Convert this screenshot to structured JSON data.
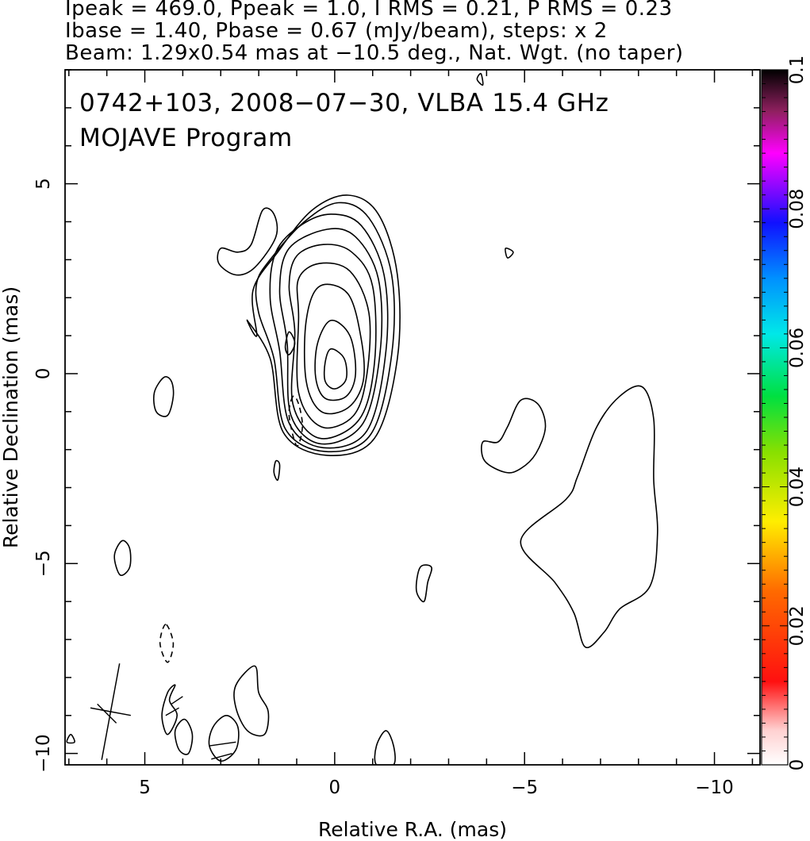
{
  "header": {
    "line1": "Ipeak = 469.0, Ppeak = 1.0, I RMS = 0.21, P RMS = 0.23",
    "line2": "Ibase = 1.40, Pbase = 0.67 (mJy/beam), steps: x 2",
    "line3": "Beam: 1.29x0.54 mas at −10.5 deg., Nat. Wgt. (no taper)"
  },
  "plot_title": {
    "line1": "0742+103, 2008−07−30, VLBA 15.4 GHz",
    "line2": "MOJAVE Program"
  },
  "colorbar": {
    "ticks": [
      "0",
      "0.02",
      "0.04",
      "0.06",
      "0.08",
      "0.1"
    ],
    "tick_values": [
      0,
      0.02,
      0.04,
      0.06,
      0.08,
      0.1
    ],
    "range": [
      0,
      0.1
    ],
    "colormap": "rainbow (white–red–orange–yellow–green–cyan–blue–magenta–black)"
  },
  "chart_data": {
    "type": "contour",
    "xlabel": "Relative R.A. (mas)",
    "ylabel": "Relative Declination (mas)",
    "xlim": [
      7.1,
      -11.2
    ],
    "ylim": [
      -10.3,
      8.0
    ],
    "x_ticks": [
      5,
      0,
      -5,
      -10
    ],
    "x_tick_labels": [
      "5",
      "0",
      "−5",
      "−10"
    ],
    "y_ticks": [
      5,
      0,
      -5,
      -10
    ],
    "y_tick_labels": [
      "5",
      "0",
      "−5",
      "−10"
    ],
    "grid": false,
    "contour_base_mJy_per_beam": 1.4,
    "contour_step_factor": 2,
    "core_ra_mas": 0,
    "core_dec_mas": 0,
    "core_levels": [
      [
        [
          0.1,
          0.65
        ],
        [
          -0.25,
          0.4
        ],
        [
          -0.3,
          -0.15
        ],
        [
          0.0,
          -0.4
        ],
        [
          0.25,
          -0.2
        ],
        [
          0.25,
          0.3
        ]
      ],
      [
        [
          0.1,
          1.4
        ],
        [
          -0.4,
          1.0
        ],
        [
          -0.55,
          0.0
        ],
        [
          -0.3,
          -0.6
        ],
        [
          0.25,
          -0.65
        ],
        [
          0.5,
          -0.1
        ],
        [
          0.45,
          0.8
        ]
      ],
      [
        [
          0.4,
          2.3
        ],
        [
          -0.35,
          2.1
        ],
        [
          -0.7,
          0.9
        ],
        [
          -0.75,
          -0.2
        ],
        [
          -0.35,
          -0.9
        ],
        [
          0.35,
          -1.0
        ],
        [
          0.75,
          -0.2
        ],
        [
          0.75,
          1.4
        ]
      ],
      [
        [
          0.4,
          2.9
        ],
        [
          -0.4,
          2.7
        ],
        [
          -0.9,
          1.6
        ],
        [
          -0.85,
          0.0
        ],
        [
          -0.5,
          -1.1
        ],
        [
          0.35,
          -1.4
        ],
        [
          0.95,
          -0.5
        ],
        [
          0.95,
          1.5
        ],
        [
          0.95,
          2.5
        ]
      ],
      [
        [
          0.3,
          3.4
        ],
        [
          -0.45,
          3.2
        ],
        [
          -1.0,
          2.3
        ],
        [
          -1.05,
          0.3
        ],
        [
          -0.65,
          -1.2
        ],
        [
          0.4,
          -1.7
        ],
        [
          1.1,
          -0.8
        ],
        [
          1.05,
          1.1
        ],
        [
          1.2,
          2.3
        ],
        [
          1.0,
          3.1
        ]
      ],
      [
        [
          0.2,
          3.8
        ],
        [
          -0.55,
          3.6
        ],
        [
          -1.15,
          2.5
        ],
        [
          -1.2,
          0.6
        ],
        [
          -0.75,
          -1.3
        ],
        [
          0.35,
          -1.85
        ],
        [
          1.15,
          -1.1
        ],
        [
          1.25,
          0.8
        ],
        [
          1.45,
          2.2
        ],
        [
          1.2,
          3.3
        ]
      ],
      [
        [
          0.1,
          4.2
        ],
        [
          -0.7,
          3.9
        ],
        [
          -1.3,
          2.6
        ],
        [
          -1.35,
          0.6
        ],
        [
          -0.85,
          -1.5
        ],
        [
          0.3,
          -1.95
        ],
        [
          1.2,
          -1.3
        ],
        [
          1.45,
          0.6
        ],
        [
          1.7,
          2.0
        ],
        [
          1.55,
          3.2
        ],
        [
          0.9,
          3.9
        ]
      ],
      [
        [
          -0.1,
          4.5
        ],
        [
          -0.9,
          4.1
        ],
        [
          -1.5,
          2.6
        ],
        [
          -1.5,
          0.5
        ],
        [
          -0.95,
          -1.6
        ],
        [
          0.25,
          -2.05
        ],
        [
          1.3,
          -1.45
        ],
        [
          1.6,
          0.4
        ],
        [
          2.0,
          1.6
        ],
        [
          2.05,
          2.4
        ],
        [
          1.7,
          3.0
        ],
        [
          0.8,
          4.0
        ]
      ],
      [
        [
          -0.35,
          4.7
        ],
        [
          -1.15,
          4.2
        ],
        [
          -1.65,
          2.6
        ],
        [
          -1.65,
          0.4
        ],
        [
          -1.05,
          -1.7
        ],
        [
          0.2,
          -2.15
        ],
        [
          1.35,
          -1.55
        ],
        [
          1.7,
          0.4
        ],
        [
          2.3,
          1.4
        ],
        [
          2.05,
          1.0
        ],
        [
          2.15,
          2.2
        ],
        [
          1.5,
          3.2
        ],
        [
          0.6,
          4.3
        ]
      ]
    ],
    "positive_islands": [
      [
        [
          1.9,
          4.3
        ],
        [
          2.2,
          3.4
        ],
        [
          2.55,
          3.2
        ],
        [
          3.0,
          3.3
        ],
        [
          3.05,
          2.9
        ],
        [
          2.6,
          2.6
        ],
        [
          2.1,
          2.8
        ],
        [
          1.55,
          3.6
        ],
        [
          1.6,
          4.2
        ]
      ],
      [
        [
          4.5,
          -0.1
        ],
        [
          4.75,
          -0.5
        ],
        [
          4.7,
          -1.0
        ],
        [
          4.4,
          -1.1
        ],
        [
          4.25,
          -0.6
        ],
        [
          4.3,
          -0.2
        ]
      ],
      [
        [
          1.2,
          1.1
        ],
        [
          1.3,
          0.7
        ],
        [
          1.2,
          0.5
        ],
        [
          1.05,
          0.8
        ]
      ],
      [
        [
          1.55,
          -2.3
        ],
        [
          1.6,
          -2.6
        ],
        [
          1.5,
          -2.8
        ],
        [
          1.45,
          -2.4
        ]
      ],
      [
        [
          5.6,
          -4.4
        ],
        [
          5.8,
          -4.8
        ],
        [
          5.65,
          -5.3
        ],
        [
          5.4,
          -5.1
        ],
        [
          5.4,
          -4.6
        ]
      ],
      [
        [
          -4.9,
          -0.7
        ],
        [
          -5.35,
          -0.8
        ],
        [
          -5.55,
          -1.4
        ],
        [
          -5.3,
          -2.1
        ],
        [
          -4.9,
          -2.5
        ],
        [
          -4.5,
          -2.6
        ],
        [
          -3.95,
          -2.3
        ],
        [
          -3.9,
          -1.8
        ],
        [
          -4.3,
          -1.8
        ],
        [
          -4.55,
          -1.4
        ]
      ],
      [
        [
          -8.1,
          -0.35
        ],
        [
          -7.5,
          -0.6
        ],
        [
          -6.9,
          -1.4
        ],
        [
          -6.4,
          -2.7
        ],
        [
          -6.1,
          -3.3
        ],
        [
          -4.9,
          -4.4
        ],
        [
          -5.8,
          -5.5
        ],
        [
          -6.3,
          -6.3
        ],
        [
          -6.6,
          -7.2
        ],
        [
          -7.1,
          -6.8
        ],
        [
          -7.5,
          -6.2
        ],
        [
          -8.3,
          -5.6
        ],
        [
          -8.5,
          -4.2
        ],
        [
          -8.4,
          -2.8
        ],
        [
          -8.4,
          -1.2
        ]
      ],
      [
        [
          -2.55,
          -5.1
        ],
        [
          -2.45,
          -5.5
        ],
        [
          -2.35,
          -6.0
        ],
        [
          -2.15,
          -5.7
        ],
        [
          -2.25,
          -5.1
        ]
      ],
      [
        [
          2.1,
          -7.7
        ],
        [
          2.0,
          -8.4
        ],
        [
          1.75,
          -8.9
        ],
        [
          1.85,
          -9.5
        ],
        [
          2.3,
          -9.4
        ],
        [
          2.6,
          -8.8
        ],
        [
          2.6,
          -8.2
        ]
      ],
      [
        [
          2.85,
          -9.0
        ],
        [
          3.2,
          -9.3
        ],
        [
          3.3,
          -9.8
        ],
        [
          3.0,
          -10.2
        ],
        [
          2.6,
          -9.9
        ],
        [
          2.55,
          -9.3
        ]
      ],
      [
        [
          3.95,
          -9.1
        ],
        [
          3.75,
          -9.5
        ],
        [
          3.85,
          -10.0
        ],
        [
          4.1,
          -9.9
        ],
        [
          4.2,
          -9.4
        ]
      ],
      [
        [
          4.2,
          -8.2
        ],
        [
          4.35,
          -8.6
        ],
        [
          4.15,
          -9.0
        ],
        [
          4.4,
          -9.5
        ],
        [
          4.55,
          -9.0
        ],
        [
          4.4,
          -8.4
        ]
      ],
      [
        [
          -1.35,
          -9.4
        ],
        [
          -1.55,
          -9.8
        ],
        [
          -1.55,
          -10.3
        ],
        [
          -1.1,
          -10.3
        ],
        [
          -1.1,
          -9.8
        ]
      ],
      [
        [
          -3.85,
          7.9
        ],
        [
          -3.9,
          7.6
        ],
        [
          -3.75,
          7.75
        ]
      ],
      [
        [
          -4.5,
          3.3
        ],
        [
          -4.7,
          3.2
        ],
        [
          -4.55,
          3.05
        ]
      ],
      [
        [
          6.95,
          -9.5
        ],
        [
          7.05,
          -9.7
        ],
        [
          6.85,
          -9.7
        ]
      ]
    ],
    "negative_islands": [
      [
        [
          1.1,
          -0.6
        ],
        [
          1.2,
          -1.1
        ],
        [
          1.0,
          -1.9
        ],
        [
          0.85,
          -1.4
        ],
        [
          0.95,
          -0.8
        ]
      ],
      [
        [
          4.45,
          -6.6
        ],
        [
          4.6,
          -7.1
        ],
        [
          4.4,
          -7.6
        ],
        [
          4.25,
          -7.1
        ]
      ]
    ],
    "beam": {
      "major_mas": 1.29,
      "minor_mas": 0.54,
      "pa_deg": -10.5
    }
  }
}
